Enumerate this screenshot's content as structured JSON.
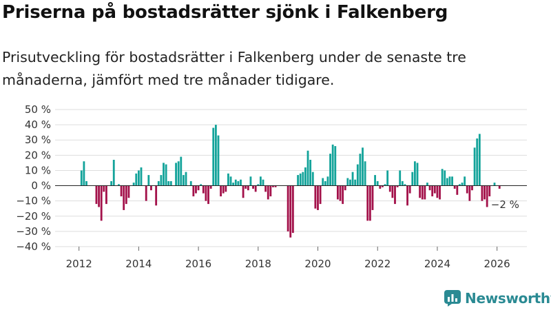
{
  "title": "Priserna på bostadsrätter sjönk i Falkenberg",
  "subtitle": "Prisutveckling för bostadsrätter i Falkenberg under de senaste tre månaderna, jämfört med tre månader tidigare.",
  "brand": {
    "name": "Newsworthy",
    "icon": "newsworthy-logo-icon",
    "color": "#2a8a93"
  },
  "colors": {
    "positive": "#13a39a",
    "negative": "#a3114a",
    "grid": "#dddddd",
    "axis": "#666666"
  },
  "chart_data": {
    "type": "bar",
    "title": "Priserna på bostadsrätter sjönk i Falkenberg",
    "subtitle": "Prisutveckling för bostadsrätter i Falkenberg under de senaste tre månaderna, jämfört med tre månader tidigare.",
    "xlabel": "",
    "ylabel": "",
    "ylim": [
      -40,
      50
    ],
    "xlim": [
      2011.2,
      2027.0
    ],
    "y_ticks": [
      -40,
      -30,
      -20,
      -10,
      0,
      10,
      20,
      30,
      40,
      50
    ],
    "y_tick_labels": [
      "−40 %",
      "−30 %",
      "−20 %",
      "−10 %",
      "0 %",
      "10 %",
      "20 %",
      "30 %",
      "40 %",
      "50 %"
    ],
    "x_ticks": [
      2012,
      2014,
      2016,
      2018,
      2020,
      2022,
      2024,
      2026
    ],
    "x_tick_labels": [
      "2012",
      "2014",
      "2016",
      "2018",
      "2020",
      "2022",
      "2024",
      "2026"
    ],
    "grid": true,
    "start": 2012.083,
    "step": 0.08333,
    "values": [
      10,
      16,
      3,
      0,
      0,
      0,
      -12,
      -14,
      -23,
      -4,
      -12,
      0,
      3,
      17,
      0,
      1,
      -7,
      -16,
      -12,
      -8,
      0,
      2,
      8,
      10,
      12,
      0,
      -10,
      7,
      -3,
      0,
      -13,
      3,
      7,
      15,
      14,
      3,
      3,
      0,
      15,
      16,
      19,
      7,
      9,
      0,
      3,
      -7,
      -5,
      -3,
      1,
      -5,
      -10,
      -12,
      -2,
      38,
      40,
      33,
      -7,
      -5,
      -4,
      8,
      6,
      2,
      4,
      3,
      4,
      -8,
      -2,
      -3,
      6,
      -2,
      -4,
      1,
      6,
      4,
      -4,
      -9,
      -7,
      -1,
      -1,
      0,
      0,
      0,
      0,
      -30,
      -34,
      -31,
      0,
      7,
      8,
      9,
      12,
      23,
      17,
      9,
      -15,
      -16,
      -12,
      5,
      3,
      6,
      21,
      27,
      26,
      -9,
      -10,
      -12,
      -3,
      5,
      4,
      9,
      4,
      14,
      21,
      25,
      16,
      -23,
      -23,
      -16,
      7,
      3,
      -2,
      -1,
      1,
      10,
      -4,
      -8,
      -12,
      -1,
      10,
      3,
      1,
      -13,
      -5,
      9,
      16,
      15,
      -8,
      -9,
      -9,
      2,
      -3,
      -7,
      -5,
      -8,
      -9,
      11,
      10,
      5,
      6,
      6,
      -2,
      -6,
      1,
      2,
      6,
      -5,
      -10,
      -3,
      25,
      31,
      34,
      -10,
      -9,
      -14,
      -7,
      0,
      2,
      0,
      -2,
      0
    ],
    "annotations": [
      {
        "text": "−2 %",
        "x": 2025.75,
        "y": -2
      }
    ]
  }
}
